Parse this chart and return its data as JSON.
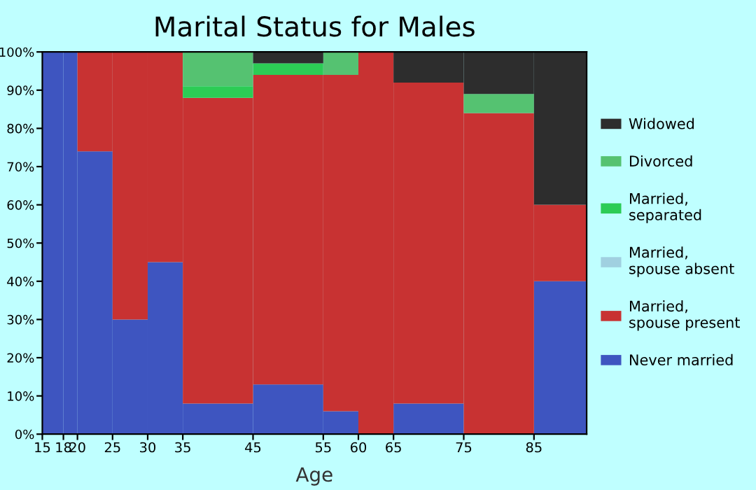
{
  "chart_data": {
    "type": "bar",
    "stacked": true,
    "title": "Marital Status for Males",
    "xlabel": "Age",
    "x": [
      16.5,
      19,
      22.5,
      27.5,
      32.5,
      40,
      50,
      57.5,
      62.5,
      70,
      80,
      88.75
    ],
    "xlim": [
      15,
      92.5
    ],
    "xticks": [
      15,
      18,
      20,
      25,
      30,
      35,
      45,
      55,
      60,
      65,
      75,
      85
    ],
    "ylim": [
      0,
      100
    ],
    "yticks": [
      {
        "value": 0,
        "label": "0%"
      },
      {
        "value": 10,
        "label": "10%"
      },
      {
        "value": 20,
        "label": "20%"
      },
      {
        "value": 30,
        "label": "30%"
      },
      {
        "value": 40,
        "label": "40%"
      },
      {
        "value": 50,
        "label": "50%"
      },
      {
        "value": 60,
        "label": "60%"
      },
      {
        "value": 70,
        "label": "70%"
      },
      {
        "value": 80,
        "label": "80%"
      },
      {
        "value": 90,
        "label": "90%"
      },
      {
        "value": 100,
        "label": "100%"
      }
    ],
    "grid": false,
    "legend": "right",
    "series": [
      {
        "name": "Never married",
        "color": "#3e55c0",
        "values": [
          100,
          100,
          74,
          30,
          45,
          8,
          13,
          6,
          0,
          8,
          0,
          40
        ]
      },
      {
        "name": "Married,\nspouse present",
        "color": "#c83232",
        "values": [
          0,
          0,
          26,
          70,
          55,
          80,
          81,
          88,
          100,
          84,
          84,
          20
        ]
      },
      {
        "name": "Married,\nspouse absent",
        "color": "#a0d0e0",
        "values": [
          0,
          0,
          0,
          0,
          0,
          0,
          0,
          0,
          0,
          0,
          0,
          0
        ]
      },
      {
        "name": "Married,\nseparated",
        "color": "#2ccc55",
        "values": [
          0,
          0,
          0,
          0,
          0,
          3,
          3,
          0,
          0,
          0,
          0,
          0
        ]
      },
      {
        "name": "Divorced",
        "color": "#55c271",
        "values": [
          0,
          0,
          0,
          0,
          0,
          9,
          0,
          6,
          0,
          0,
          5,
          0
        ]
      },
      {
        "name": "Widowed",
        "color": "#2d2d2d",
        "values": [
          0,
          0,
          0,
          0,
          0,
          0,
          3,
          0,
          0,
          8,
          11,
          40
        ]
      }
    ]
  }
}
